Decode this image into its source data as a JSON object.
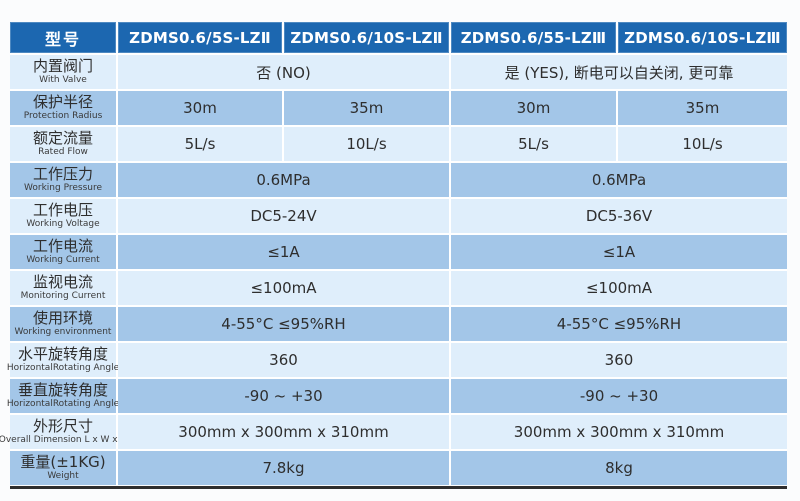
{
  "table": {
    "header": {
      "model_label": "型号",
      "columns": [
        "ZDMS0.6/5S-LZⅡ",
        "ZDMS0.6/10S-LZⅡ",
        "ZDMS0.6/55-LZⅢ",
        "ZDMS0.6/10S-LZⅢ"
      ]
    },
    "rows": [
      {
        "label": "内置阀门",
        "sublabel": "With Valve",
        "left": "否 (NO)",
        "right": "是 (YES), 断电可以自关闭, 更可靠"
      },
      {
        "label": "保护半径",
        "sublabel": "Protection Radius",
        "values": [
          "30m",
          "35m",
          "30m",
          "35m"
        ]
      },
      {
        "label": "额定流量",
        "sublabel": "Rated Flow",
        "values": [
          "5L/s",
          "10L/s",
          "5L/s",
          "10L/s"
        ]
      },
      {
        "label": "工作压力",
        "sublabel": "Working Pressure",
        "left": "0.6MPa",
        "right": "0.6MPa"
      },
      {
        "label": "工作电压",
        "sublabel": "Working Voltage",
        "left": "DC5-24V",
        "right": "DC5-36V"
      },
      {
        "label": "工作电流",
        "sublabel": "Working Current",
        "left": "≤1A",
        "right": "≤1A"
      },
      {
        "label": "监视电流",
        "sublabel": "Monitoring Current",
        "left": "≤100mA",
        "right": "≤100mA"
      },
      {
        "label": "使用环境",
        "sublabel": "Working environment",
        "left": "4-55°C  ≤95%RH",
        "right": "4-55°C  ≤95%RH"
      },
      {
        "label": "水平旋转角度",
        "sublabel": "HorizontalRotating Angle",
        "left": "360",
        "right": "360"
      },
      {
        "label": "垂直旋转角度",
        "sublabel": "HorizontalRotating Angle",
        "left": "-90 ~ +30",
        "right": "-90 ~ +30"
      },
      {
        "label": "外形尺寸",
        "sublabel": "Overall Dimension L x W x H",
        "left": "300mm x 300mm x 310mm",
        "right": "300mm x 300mm x 310mm"
      },
      {
        "label": "重量(±1KG)",
        "sublabel": "Weight",
        "left": "7.8kg",
        "right": "8kg"
      }
    ],
    "colors": {
      "header_bg": "#1c67b0",
      "row_light": "#dfeefb",
      "row_mid": "#a3c6e8",
      "divider": "#ffffff",
      "bottom_rule": "#2e2e2e",
      "text": "#2e2e2e"
    }
  }
}
